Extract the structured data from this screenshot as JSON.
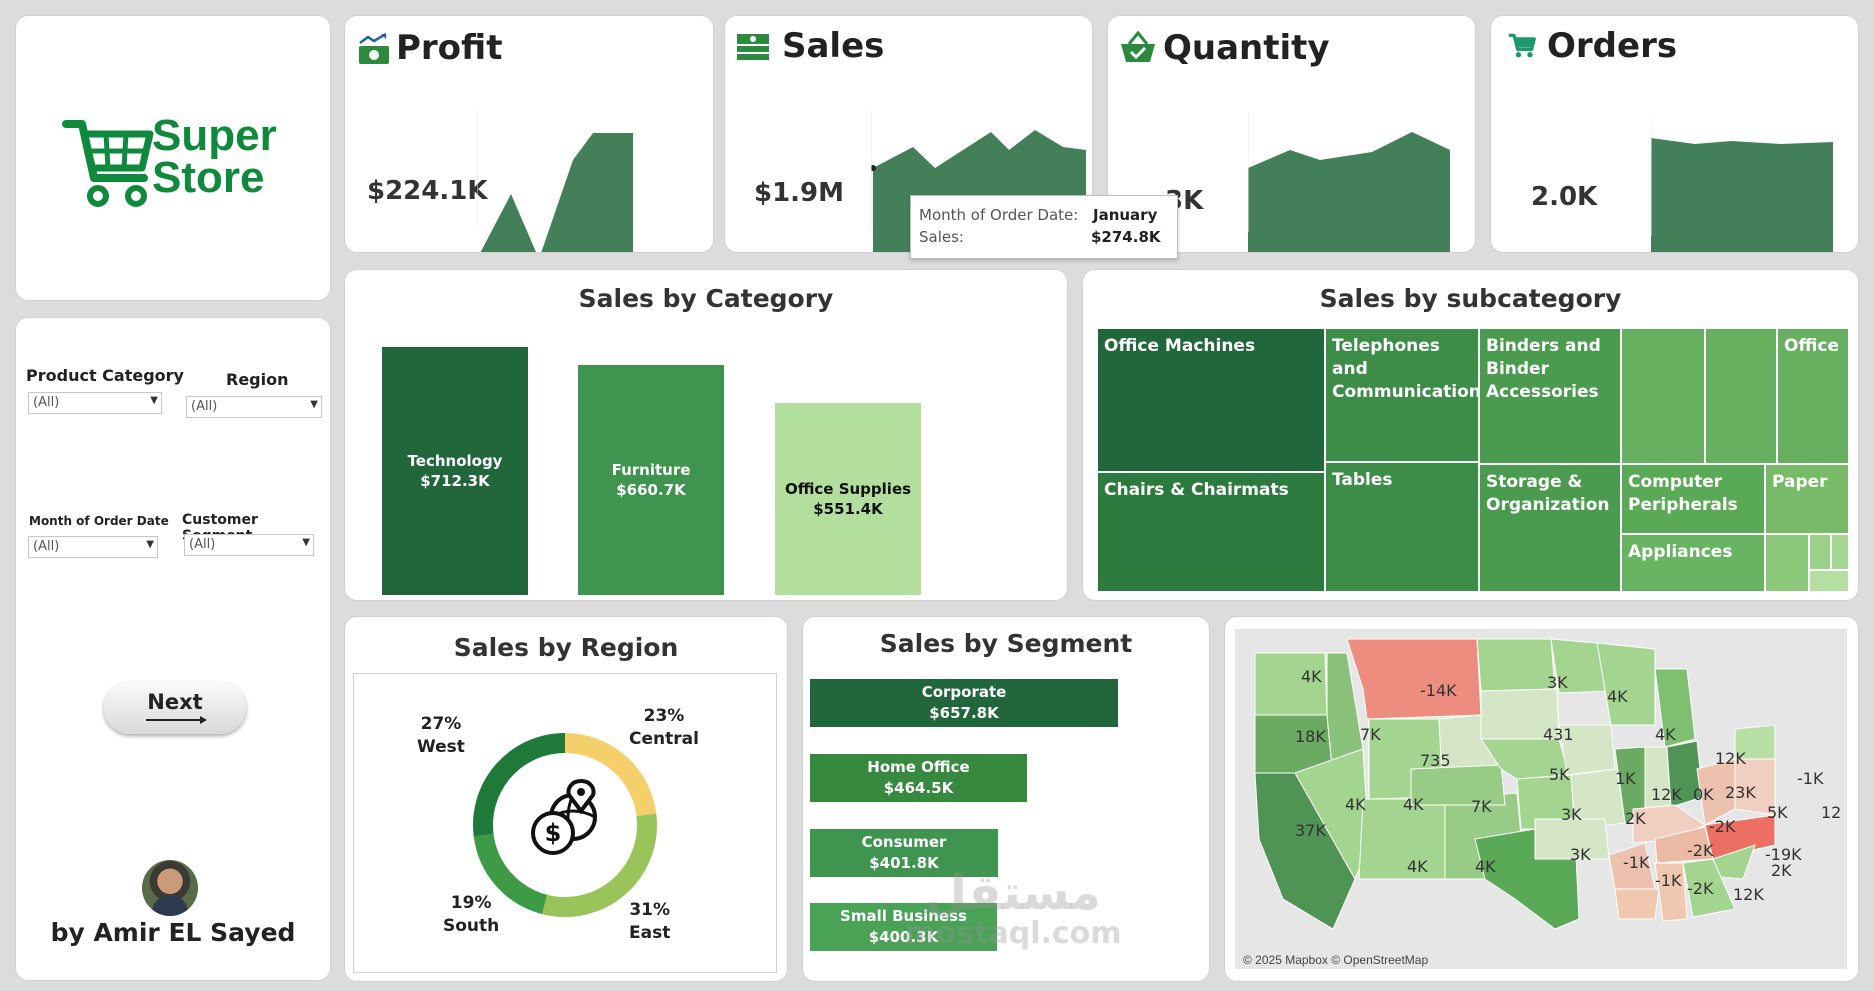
{
  "brand": {
    "line1": "Super",
    "line2": "Store",
    "color": "#0f8a3c"
  },
  "kpis": {
    "profit": {
      "title": "Profit",
      "value": "$224.1K",
      "icon": "profit-chart-icon"
    },
    "sales": {
      "title": "Sales",
      "value": "$1.9M",
      "icon": "money-icon"
    },
    "quantity": {
      "title": "Quantity",
      "value_visible": "3K",
      "icon": "basket-icon"
    },
    "orders": {
      "title": "Orders",
      "value": "2.0K",
      "icon": "cart-icon"
    }
  },
  "tooltip": {
    "row1_label": "Month of Order Date:",
    "row1_value": "January",
    "row2_label": "Sales:",
    "row2_value": "$274.8K"
  },
  "filters": {
    "product_category": {
      "label": "Product Category",
      "value": "(All)"
    },
    "region": {
      "label": "Region",
      "value": "(All)"
    },
    "month": {
      "label": "Month of Order Date",
      "value": "(All)"
    },
    "segment": {
      "label": "Customer Segment",
      "value": "(All)"
    }
  },
  "next_button": {
    "label": "Next"
  },
  "author": {
    "label": "by Amir EL Sayed"
  },
  "category_chart": {
    "title": "Sales by Category",
    "bars": [
      {
        "name": "Technology",
        "value": "$712.3K",
        "amount": 712.3,
        "color": "#22673b"
      },
      {
        "name": "Furniture",
        "value": "$660.7K",
        "amount": 660.7,
        "color": "#3f9450"
      },
      {
        "name": "Office Supplies",
        "value": "$551.4K",
        "amount": 551.4,
        "color": "#b3df9e"
      }
    ]
  },
  "subcategory_chart": {
    "title": "Sales by subcategory",
    "labels": {
      "office_machines": "Office Machines",
      "chairs": "Chairs & Chairmats",
      "telephones": "Telephones and Communication",
      "tables": "Tables",
      "binders": "Binders and Binder Accessories",
      "storage": "Storage & Organization",
      "office": "Office",
      "computer": "Computer Peripherals",
      "paper": "Paper",
      "appliances": "Appliances"
    }
  },
  "region_chart": {
    "title": "Sales by Region",
    "slices": [
      {
        "name": "West",
        "pct": "27%",
        "value": 27,
        "color": "#1f7a3a"
      },
      {
        "name": "Central",
        "pct": "23%",
        "value": 23,
        "color": "#f5cf6a"
      },
      {
        "name": "East",
        "pct": "31%",
        "value": 31,
        "color": "#98c45a"
      },
      {
        "name": "South",
        "pct": "19%",
        "value": 19,
        "color": "#3d9a45"
      }
    ],
    "center_icon": "dollar-globe-icon"
  },
  "segment_chart": {
    "title": "Sales by Segment",
    "bars": [
      {
        "name": "Corporate",
        "value": "$657.8K",
        "amount": 657.8,
        "color": "#22673b"
      },
      {
        "name": "Home Office",
        "value": "$464.5K",
        "amount": 464.5,
        "color": "#37893f"
      },
      {
        "name": "Consumer",
        "value": "$401.8K",
        "amount": 401.8,
        "color": "#3f9450"
      },
      {
        "name": "Small Business",
        "value": "$400.3K",
        "amount": 400.3,
        "color": "#4aa257"
      }
    ]
  },
  "map": {
    "attribution": "© 2025 Mapbox © OpenStreetMap",
    "labels": [
      "4K",
      "-14K",
      "3K",
      "18K",
      "7K",
      "735",
      "431",
      "4K",
      "4K",
      "12K",
      "1K",
      "5K",
      "4K",
      "4K",
      "7K",
      "37K",
      "3K",
      "2K",
      "12K",
      "0K",
      "23K",
      "-1K",
      "5K",
      "-2K",
      "3K",
      "-1K",
      "-2K",
      "-19K",
      "4K",
      "4K",
      "-1K",
      "-2K",
      "12K",
      "2K",
      "12"
    ]
  },
  "watermark": {
    "line1": "مستقل",
    "line2": "mostaql.com"
  }
}
